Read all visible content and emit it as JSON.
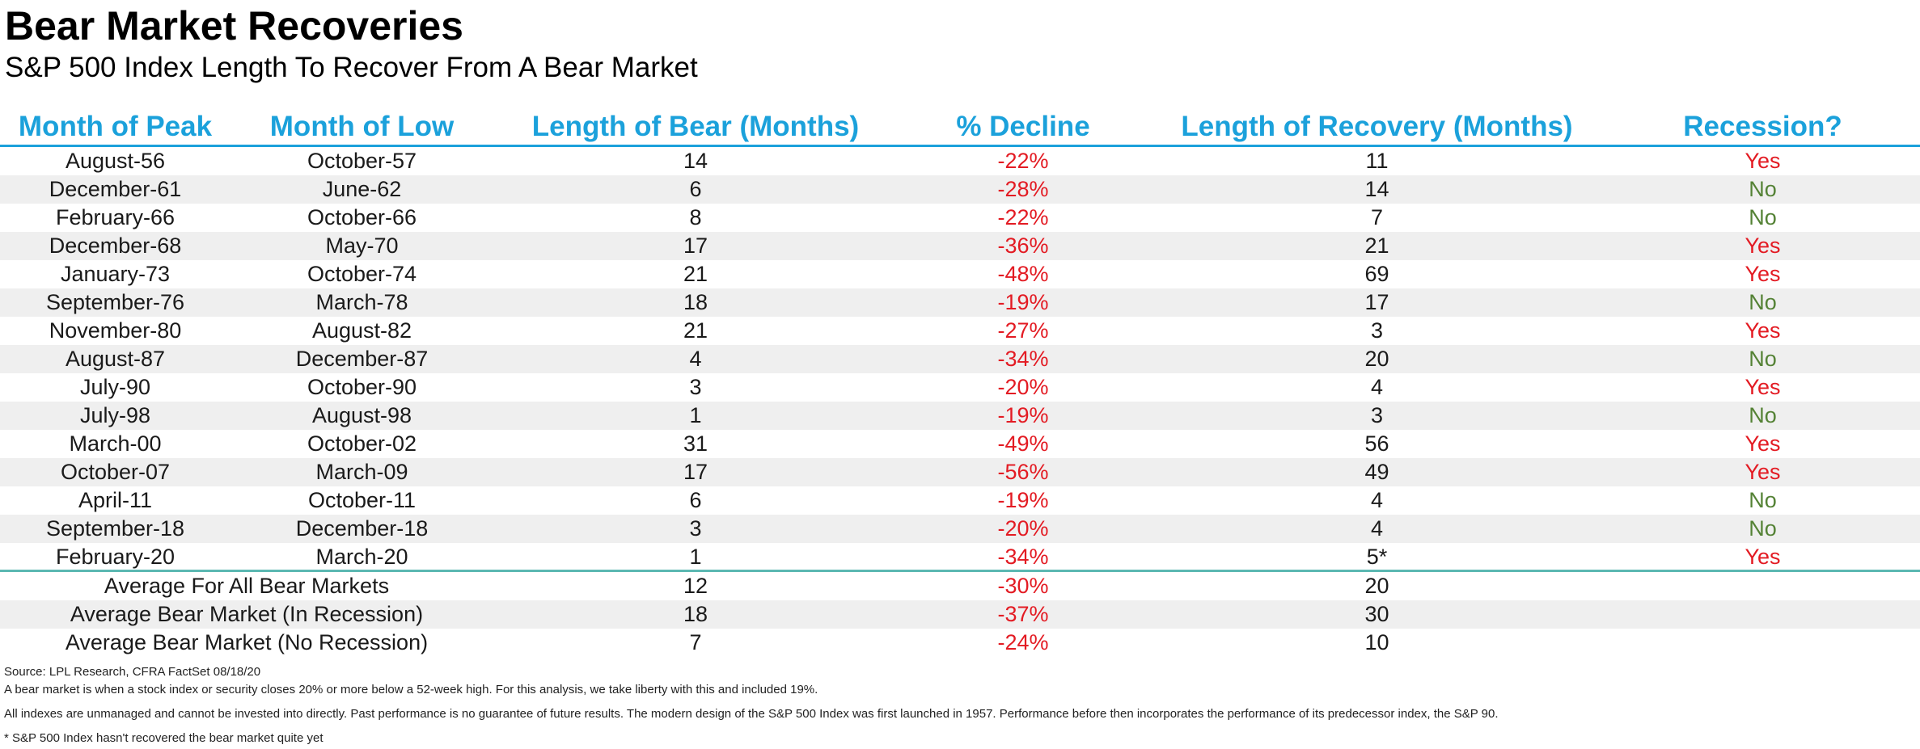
{
  "title": "Bear Market Recoveries",
  "subtitle": "S&P 500 Index Length To Recover From A Bear Market",
  "colors": {
    "header": "#1ba1db",
    "negative": "#e31b23",
    "yes": "#e31b23",
    "no": "#548235",
    "row_shade": "#efefef"
  },
  "chart_data": {
    "type": "table",
    "columns": [
      "Month of Peak",
      "Month of Low",
      "Length of Bear (Months)",
      "% Decline",
      "Length of Recovery (Months)",
      "Recession?"
    ],
    "rows": [
      [
        "August-56",
        "October-57",
        "14",
        "-22%",
        "11",
        "Yes"
      ],
      [
        "December-61",
        "June-62",
        "6",
        "-28%",
        "14",
        "No"
      ],
      [
        "February-66",
        "October-66",
        "8",
        "-22%",
        "7",
        "No"
      ],
      [
        "December-68",
        "May-70",
        "17",
        "-36%",
        "21",
        "Yes"
      ],
      [
        "January-73",
        "October-74",
        "21",
        "-48%",
        "69",
        "Yes"
      ],
      [
        "September-76",
        "March-78",
        "18",
        "-19%",
        "17",
        "No"
      ],
      [
        "November-80",
        "August-82",
        "21",
        "-27%",
        "3",
        "Yes"
      ],
      [
        "August-87",
        "December-87",
        "4",
        "-34%",
        "20",
        "No"
      ],
      [
        "July-90",
        "October-90",
        "3",
        "-20%",
        "4",
        "Yes"
      ],
      [
        "July-98",
        "August-98",
        "1",
        "-19%",
        "3",
        "No"
      ],
      [
        "March-00",
        "October-02",
        "31",
        "-49%",
        "56",
        "Yes"
      ],
      [
        "October-07",
        "March-09",
        "17",
        "-56%",
        "49",
        "Yes"
      ],
      [
        "April-11",
        "October-11",
        "6",
        "-19%",
        "4",
        "No"
      ],
      [
        "September-18",
        "December-18",
        "3",
        "-20%",
        "4",
        "No"
      ],
      [
        "February-20",
        "March-20",
        "1",
        "-34%",
        "5*",
        "Yes"
      ]
    ],
    "averages": [
      [
        "Average For All Bear Markets",
        "12",
        "-30%",
        "20"
      ],
      [
        "Average Bear Market (In Recession)",
        "18",
        "-37%",
        "30"
      ],
      [
        "Average Bear Market (No Recession)",
        "7",
        "-24%",
        "10"
      ]
    ]
  },
  "footnotes": [
    "Source: LPL Research, CFRA FactSet 08/18/20",
    "A bear market is when a stock index or security closes 20% or more below a 52-week high. For this analysis, we take liberty with this and included 19%.",
    "All indexes are unmanaged and cannot be invested into directly. Past performance is no guarantee of future results. The modern design of the S&P 500 Index was first launched in 1957. Performance before then incorporates the performance of its predecessor index, the S&P 90.",
    "* S&P 500 Index hasn't recovered the bear market quite yet"
  ]
}
